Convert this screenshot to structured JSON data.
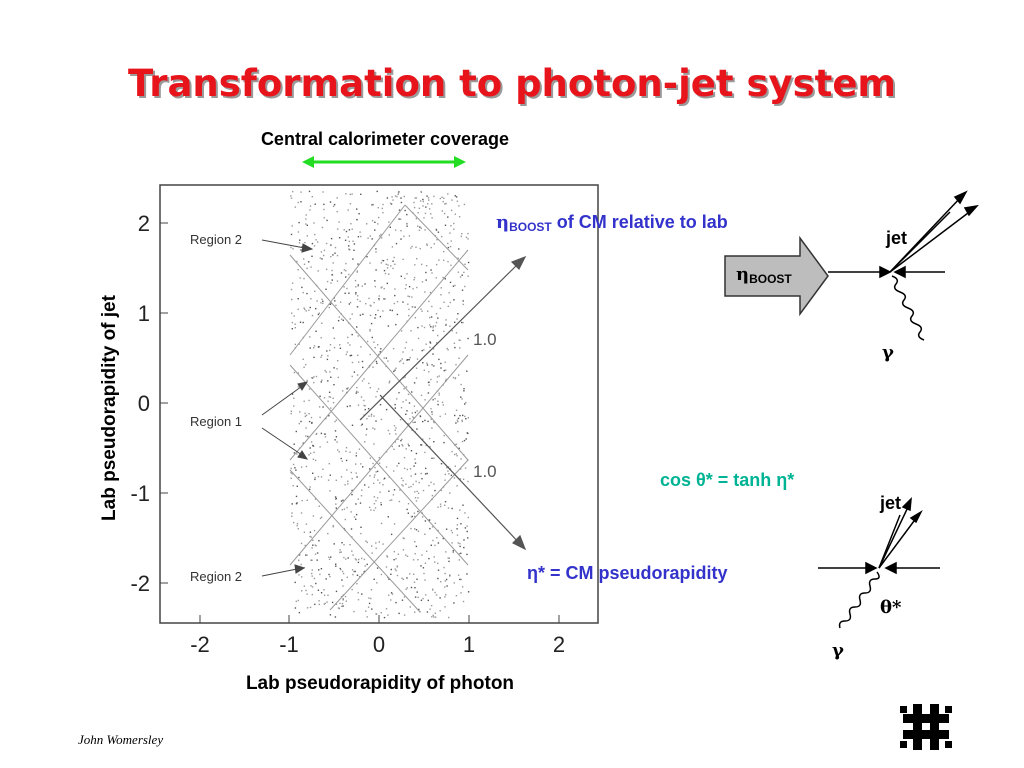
{
  "title": "Transformation to photon-jet system",
  "coverage_label": "Central calorimeter coverage",
  "plot": {
    "ylabel": "Lab pseudorapidity of jet",
    "xlabel": "Lab pseudorapidity of photon",
    "x_ticks": [
      "-2",
      "-1",
      "0",
      "1",
      "2"
    ],
    "y_ticks": [
      "2",
      "1",
      "0",
      "-1",
      "-2"
    ],
    "region_labels": [
      "Region 2",
      "Region 1",
      "Region 2"
    ],
    "line_labels": [
      "1.0",
      "1.0"
    ]
  },
  "annotations": {
    "boost_eta": "η",
    "boost_sub": "BOOST",
    "boost_text": " of CM relative to lab",
    "eta_star": "η* = CM pseudorapidity",
    "cos_text": "cos θ* = tanh η*"
  },
  "diagram1": {
    "box_eta": "η",
    "box_sub": "BOOST",
    "jet": "jet",
    "gamma": "γ"
  },
  "diagram2": {
    "jet": "jet",
    "gamma": "γ",
    "theta": "θ*"
  },
  "author": "John Womersley",
  "colors": {
    "title": "#e8141b",
    "blue": "#3333cc",
    "teal": "#00b394",
    "arrow_green": "#22dd22"
  }
}
